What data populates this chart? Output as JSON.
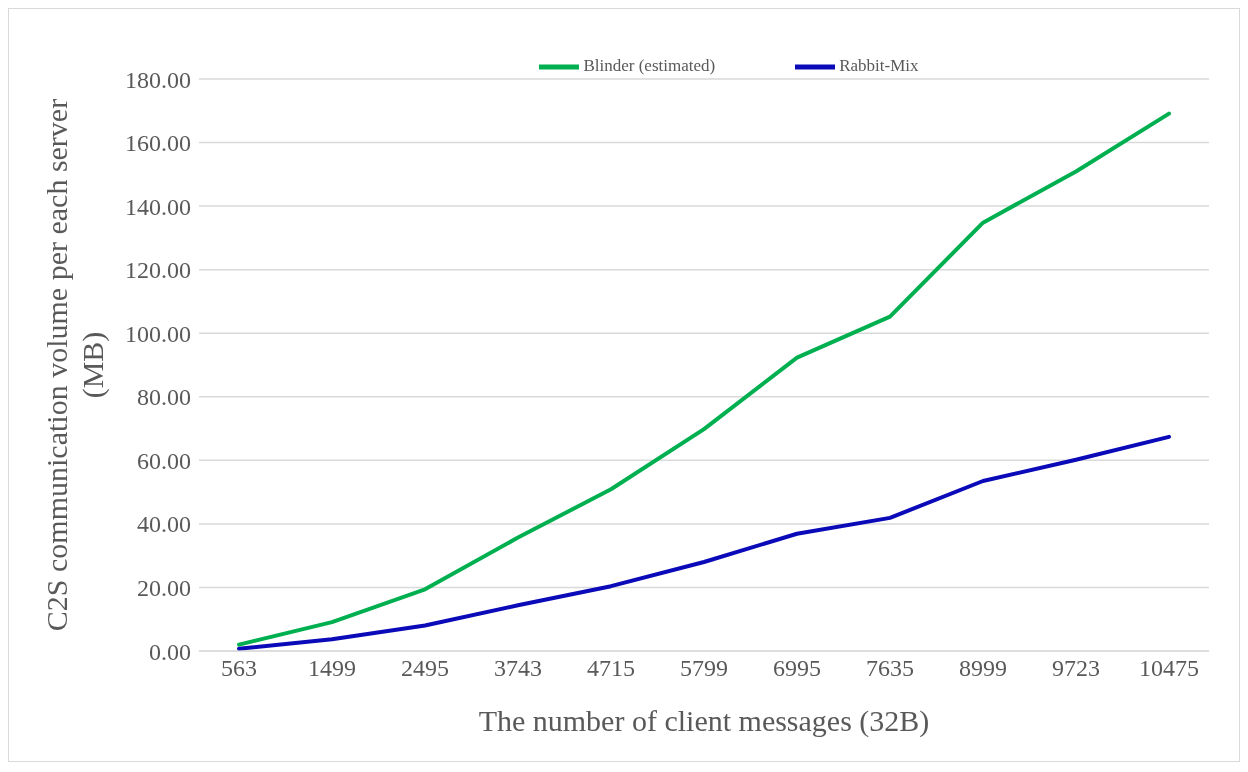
{
  "chart_data": {
    "type": "line",
    "xlabel": "The number of client messages (32B)",
    "ylabel": "C2S communication volume per each server (MB)",
    "categories": [
      "563",
      "1499",
      "2495",
      "3743",
      "4715",
      "5799",
      "6995",
      "7635",
      "8999",
      "9723",
      "10475"
    ],
    "series": [
      {
        "name": "Rabbit-Mix",
        "color": "#0a0ab8",
        "values": [
          0.7,
          3.7,
          8.0,
          14.4,
          20.4,
          28.0,
          36.9,
          41.9,
          53.5,
          60.2,
          67.4
        ]
      },
      {
        "name": "Blinder (estimated)",
        "color": "#00b050",
        "values": [
          2.0,
          9.1,
          19.4,
          35.7,
          50.9,
          69.8,
          92.3,
          105.2,
          134.8,
          150.9,
          169.1
        ]
      }
    ],
    "ylim": [
      0,
      180
    ],
    "yticks": [
      {
        "value": 0,
        "label": "0.00"
      },
      {
        "value": 20,
        "label": "20.00"
      },
      {
        "value": 40,
        "label": "40.00"
      },
      {
        "value": 60,
        "label": "60.00"
      },
      {
        "value": 80,
        "label": "80.00"
      },
      {
        "value": 100,
        "label": "100.00"
      },
      {
        "value": 120,
        "label": "120.00"
      },
      {
        "value": 140,
        "label": "140.00"
      },
      {
        "value": 160,
        "label": "160.00"
      },
      {
        "value": 180,
        "label": "180.00"
      }
    ],
    "grid": "y",
    "legend": "top",
    "marker": "none",
    "line_style": "solid"
  }
}
